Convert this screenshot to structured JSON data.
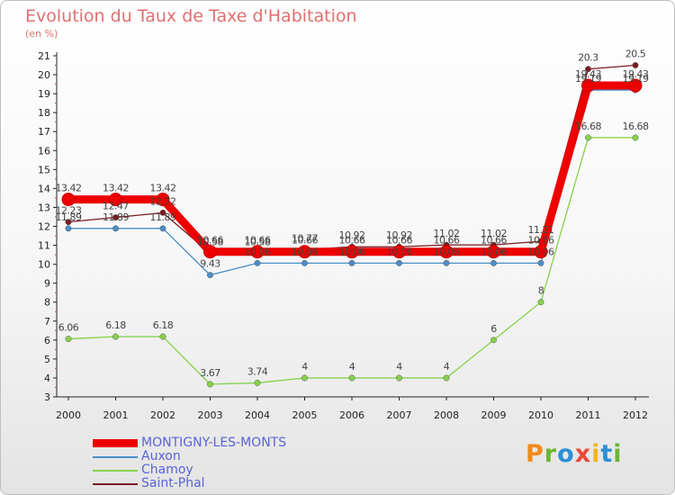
{
  "page": {
    "title": "Evolution du Taux de Taxe d'Habitation",
    "subtitle": "(en %)"
  },
  "logo": {
    "letters": [
      "P",
      "r",
      "o",
      "x",
      "i",
      "t",
      "i"
    ],
    "colors": [
      "#f08a1c",
      "#6bb536",
      "#2d8fd5",
      "#e84a3a",
      "#f0b41c",
      "#2d8fd5",
      "#6bb536"
    ]
  },
  "chart_data": {
    "type": "line",
    "x": [
      "2000",
      "2001",
      "2002",
      "2003",
      "2004",
      "2005",
      "2006",
      "2007",
      "2008",
      "2009",
      "2010",
      "2011",
      "2012"
    ],
    "yticks": [
      "3",
      "4",
      "5",
      "6",
      "7",
      "8",
      "9",
      "10",
      "11",
      "12",
      "13",
      "14",
      "15",
      "16",
      "17",
      "18",
      "19",
      "20",
      "21"
    ],
    "ylim": [
      3,
      21
    ],
    "grid": false,
    "legend_position": "bottom-left",
    "series": [
      {
        "name": "MONTIGNY-LES-MONTS",
        "color": "#ee0000",
        "values": [
          13.42,
          13.42,
          13.42,
          10.66,
          10.66,
          10.66,
          10.66,
          10.66,
          10.66,
          10.66,
          10.66,
          19.43,
          19.43
        ],
        "labels": [
          "13.42",
          "13.42",
          "13.42",
          "10.66",
          "10.66",
          "10.66",
          "10.66",
          "10.66",
          "10.66",
          "10.66",
          "10.66",
          "19.43",
          "19.43"
        ]
      },
      {
        "name": "Auxon",
        "color": "#4a8ec8",
        "values": [
          11.89,
          11.89,
          11.89,
          9.43,
          10.06,
          10.06,
          10.06,
          10.06,
          10.06,
          10.06,
          10.06,
          19.19,
          19.19
        ],
        "labels": [
          "11.89",
          "11.89",
          "11.89",
          "9.43",
          "10.06",
          "10.06",
          "10.06",
          "10.06",
          "10.06",
          "10.06",
          "10.06",
          "19.19",
          "19.19"
        ]
      },
      {
        "name": "Chamoy",
        "color": "#86d24c",
        "values": [
          6.06,
          6.18,
          6.18,
          3.67,
          3.74,
          4,
          4,
          4,
          4,
          6,
          8,
          16.68,
          16.68
        ],
        "labels": [
          "6.06",
          "6.18",
          "6.18",
          "3.67",
          "3.74",
          "4",
          "4",
          "4",
          "4",
          "6",
          "8",
          "16.68",
          "16.68"
        ]
      },
      {
        "name": "Saint-Phal",
        "color": "#7a1a22",
        "values": [
          12.23,
          12.47,
          12.72,
          10.58,
          10.58,
          10.77,
          10.92,
          10.92,
          11.02,
          11.02,
          11.21,
          20.3,
          20.5
        ],
        "labels": [
          "12.23",
          "12.47",
          "12.72",
          "10.58",
          "10.58",
          "10.77",
          "10.92",
          "10.92",
          "11.02",
          "11.02",
          "11.21",
          "20.3",
          "20.5"
        ]
      }
    ]
  }
}
